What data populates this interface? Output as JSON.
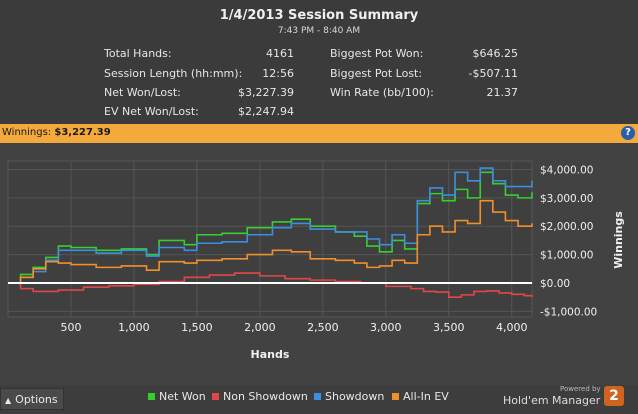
{
  "summary": {
    "title": "1/4/2013 Session Summary",
    "subtitle": "7:43 PM - 8:40 AM",
    "left": [
      {
        "label": "Total Hands:",
        "value": "4161"
      },
      {
        "label": "Session Length (hh:mm):",
        "value": "12:56"
      },
      {
        "label": "Net Won/Lost:",
        "value": "$3,227.39"
      },
      {
        "label": "EV Net Won/Lost:",
        "value": "$2,247.94"
      }
    ],
    "right": [
      {
        "label": "Biggest Pot Won:",
        "value": "$646.25"
      },
      {
        "label": "Biggest Pot Lost:",
        "value": "-$507.11"
      },
      {
        "label": "Win Rate (bb/100):",
        "value": "21.37"
      }
    ]
  },
  "winnings_bar": {
    "label": "Winnings:",
    "amount": "$3,227.39",
    "help": "?"
  },
  "footer": {
    "options_label": "Options",
    "options_icon": "caret-up-icon",
    "legend": [
      {
        "label": "Net Won",
        "color": "#35d02f"
      },
      {
        "label": "Non Showdown",
        "color": "#e04848"
      },
      {
        "label": "Showdown",
        "color": "#3c8fe0"
      },
      {
        "label": "All-In EV",
        "color": "#f0902a"
      }
    ],
    "powered_by": "Powered by",
    "brand": "Hold'em Manager",
    "brand_badge": "2"
  },
  "chart_data": {
    "type": "line",
    "xlabel": "Hands",
    "ylabel": "Winnings",
    "xlim": [
      0,
      4161
    ],
    "ylim": [
      -1200,
      4300
    ],
    "x_ticks": [
      500,
      1000,
      1500,
      2000,
      2500,
      3000,
      3500,
      4000
    ],
    "x_tick_labels": [
      "500",
      "1,000",
      "1,500",
      "2,000",
      "2,500",
      "3,000",
      "3,500",
      "4,000"
    ],
    "y_ticks": [
      4000,
      3000,
      2000,
      1000,
      0,
      -1000
    ],
    "y_tick_labels": [
      "$4,000.00",
      "$3,000.00",
      "$2,000.00",
      "$1,000.00",
      "$0.00",
      "-$1,000.00"
    ],
    "grid": true,
    "zero_line": true,
    "series": [
      {
        "name": "Net Won",
        "color": "#35d02f",
        "x": [
          0,
          100,
          200,
          300,
          400,
          500,
          700,
          900,
          1100,
          1200,
          1400,
          1500,
          1700,
          1900,
          2100,
          2250,
          2400,
          2600,
          2750,
          2850,
          2950,
          3050,
          3150,
          3250,
          3350,
          3450,
          3550,
          3650,
          3750,
          3850,
          3950,
          4050,
          4161
        ],
        "y": [
          0,
          300,
          550,
          900,
          1300,
          1250,
          1150,
          1200,
          1000,
          1500,
          1350,
          1700,
          1750,
          1950,
          2150,
          2250,
          2000,
          1800,
          1650,
          1300,
          1100,
          1500,
          1200,
          2800,
          3150,
          2900,
          3300,
          3000,
          3900,
          3500,
          3100,
          3000,
          3200
        ]
      },
      {
        "name": "Non Showdown",
        "color": "#e04848",
        "x": [
          0,
          100,
          200,
          400,
          600,
          800,
          1000,
          1200,
          1400,
          1600,
          1800,
          2000,
          2200,
          2400,
          2600,
          2800,
          3000,
          3200,
          3300,
          3400,
          3500,
          3600,
          3700,
          3800,
          3900,
          4000,
          4100,
          4161
        ],
        "y": [
          0,
          -200,
          -300,
          -250,
          -150,
          -100,
          -50,
          50,
          200,
          280,
          350,
          250,
          150,
          100,
          50,
          0,
          -120,
          -200,
          -300,
          -320,
          -500,
          -420,
          -300,
          -280,
          -350,
          -400,
          -450,
          -500
        ]
      },
      {
        "name": "Showdown",
        "color": "#3c8fe0",
        "x": [
          0,
          100,
          200,
          300,
          400,
          500,
          700,
          900,
          1100,
          1200,
          1400,
          1500,
          1700,
          1900,
          2100,
          2250,
          2400,
          2600,
          2750,
          2850,
          2950,
          3050,
          3150,
          3250,
          3350,
          3450,
          3550,
          3650,
          3750,
          3850,
          3950,
          4050,
          4161
        ],
        "y": [
          0,
          200,
          400,
          800,
          1150,
          1150,
          1050,
          1150,
          950,
          1250,
          1150,
          1400,
          1450,
          1700,
          1950,
          2100,
          1900,
          1800,
          1800,
          1550,
          1350,
          1700,
          1400,
          2900,
          3350,
          3100,
          3900,
          3600,
          4050,
          3600,
          3400,
          3400,
          3600
        ]
      },
      {
        "name": "All-In EV",
        "color": "#f0902a",
        "x": [
          0,
          100,
          200,
          300,
          400,
          500,
          700,
          900,
          1100,
          1200,
          1400,
          1500,
          1700,
          1900,
          2100,
          2250,
          2400,
          2600,
          2750,
          2850,
          2950,
          3050,
          3150,
          3250,
          3350,
          3450,
          3550,
          3650,
          3750,
          3850,
          3950,
          4050,
          4161
        ],
        "y": [
          0,
          200,
          500,
          750,
          700,
          650,
          550,
          600,
          450,
          750,
          700,
          800,
          850,
          1000,
          1150,
          1100,
          850,
          800,
          700,
          550,
          600,
          800,
          700,
          1700,
          2000,
          1800,
          2200,
          2100,
          2900,
          2500,
          2200,
          2000,
          2100
        ]
      }
    ]
  }
}
